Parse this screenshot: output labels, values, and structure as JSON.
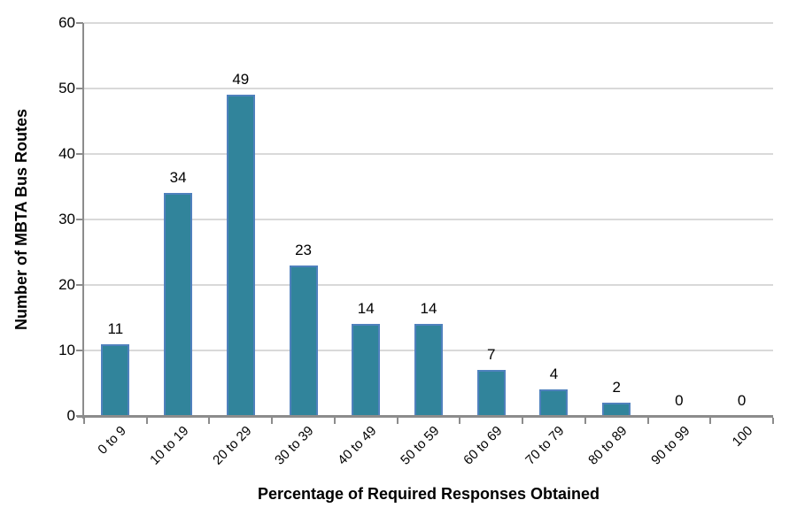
{
  "chart_data": {
    "type": "bar",
    "title": "",
    "xlabel": "Percentage of Required Responses Obtained",
    "ylabel": "Number of MBTA Bus Routes",
    "categories": [
      "0 to 9",
      "10 to 19",
      "20 to 29",
      "30 to 39",
      "40 to 49",
      "50 to 59",
      "60 to 69",
      "70 to 79",
      "80 to 89",
      "90 to 99",
      "100"
    ],
    "values": [
      11,
      34,
      49,
      23,
      14,
      14,
      7,
      4,
      2,
      0,
      0
    ],
    "ylim": [
      0,
      60
    ],
    "yticks": [
      0,
      10,
      20,
      30,
      40,
      50,
      60
    ],
    "grid": "horizontal",
    "legend": "none",
    "data_labels": true,
    "colors": {
      "bar_fill": "#31849B",
      "bar_border": "#4F81BD",
      "gridline": "#D9D9D9",
      "axis": "#8C8C8C",
      "text": "#000000"
    }
  }
}
